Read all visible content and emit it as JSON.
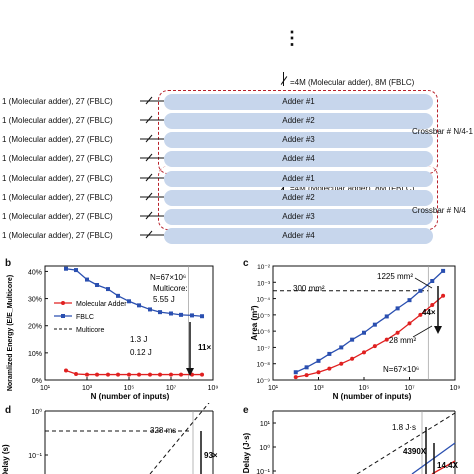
{
  "top_ellipsis": "⋮",
  "schematic": {
    "groups": [
      {
        "bus_label": "=4M (Molecular adder), 8M (FBLC)",
        "inputs": [
          "1 (Molecular adder), 27 (FBLC)",
          "1 (Molecular adder), 27 (FBLC)",
          "1 (Molecular adder), 27 (FBLC)",
          "1 (Molecular adder), 27 (FBLC)"
        ],
        "adders": [
          "Adder #1",
          "Adder #2",
          "Adder #3",
          "Adder #4"
        ],
        "crossbar_label": "Crossbar # N/4-1"
      },
      {
        "bus_label": "=4M (Molecular adder), 8M (FBLC)",
        "inputs": [
          "1 (Molecular adder), 27 (FBLC)",
          "1 (Molecular adder), 27 (FBLC)",
          "1 (Molecular adder), 27 (FBLC)",
          "1 (Molecular adder), 27 (FBLC)"
        ],
        "adders": [
          "Adder #1",
          "Adder #2",
          "Adder #3",
          "Adder #4"
        ],
        "crossbar_label": "Crossbar # N/4"
      }
    ]
  },
  "panels": {
    "b": {
      "letter": "b"
    },
    "c": {
      "letter": "c"
    },
    "d": {
      "letter": "d"
    },
    "e": {
      "letter": "e"
    }
  },
  "colors": {
    "molecular": "#e02020",
    "fblc": "#2a4fb0",
    "multicore": "#111111",
    "bar": "#c7d6ec",
    "crossbar": "#b8202a"
  },
  "chart_data": [
    {
      "panel": "b",
      "type": "line",
      "ylabel": "Noramlized Energy (E/E_Multicore)",
      "xlabel": "N (number of inputs)",
      "x_scale": "log",
      "xlim": [
        10,
        1000000000
      ],
      "ylim": [
        0,
        0.42
      ],
      "x_ticks": [
        "10¹",
        "10³",
        "10⁵",
        "10⁷",
        "10⁹"
      ],
      "y_ticks": [
        "0%",
        "10%",
        "20%",
        "30%",
        "40%"
      ],
      "series": [
        {
          "name": "Molecular Adder",
          "x": [
            100,
            300,
            1000,
            3000,
            10000,
            30000,
            100000,
            300000,
            1000000,
            3000000,
            10000000,
            30000000,
            100000000,
            300000000
          ],
          "y": [
            0.035,
            0.022,
            0.02,
            0.02,
            0.02,
            0.02,
            0.02,
            0.02,
            0.02,
            0.02,
            0.02,
            0.02,
            0.02,
            0.02
          ]
        },
        {
          "name": "FBLC",
          "x": [
            100,
            300,
            1000,
            3000,
            10000,
            30000,
            100000,
            300000,
            1000000,
            3000000,
            10000000,
            30000000,
            100000000,
            300000000
          ],
          "y": [
            0.41,
            0.405,
            0.37,
            0.35,
            0.335,
            0.31,
            0.29,
            0.275,
            0.26,
            0.25,
            0.245,
            0.24,
            0.238,
            0.235
          ]
        },
        {
          "name": "Multicore",
          "x": [],
          "y": []
        }
      ],
      "annotations": [
        "N=67×10⁶",
        "Multicore:",
        "5.55 J",
        "1.3  J",
        "0.12 J",
        "11×"
      ]
    },
    {
      "panel": "c",
      "type": "line",
      "ylabel": "Area (m²)",
      "xlabel": "N (number of inputs)",
      "x_scale": "log",
      "y_scale": "log",
      "xlim": [
        10,
        1000000000
      ],
      "ylim": [
        1e-09,
        0.01
      ],
      "x_ticks": [
        "10¹",
        "10³",
        "10⁵",
        "10⁷",
        "10⁹"
      ],
      "y_ticks": [
        "10⁻⁹",
        "10⁻⁸",
        "10⁻⁷",
        "10⁻⁶",
        "10⁻⁵",
        "10⁻⁴",
        "10⁻³",
        "10⁻²"
      ],
      "series": [
        {
          "name": "FBLC",
          "x": [
            100,
            300,
            1000,
            3000,
            10000,
            30000,
            100000,
            300000,
            1000000,
            3000000,
            10000000,
            30000000,
            100000000,
            300000000
          ],
          "y": [
            3e-09,
            6e-09,
            1.5e-08,
            4e-08,
            1e-07,
            3e-07,
            8e-07,
            2.5e-06,
            8e-06,
            2.5e-05,
            8e-05,
            0.0003,
            0.0012,
            0.005
          ]
        },
        {
          "name": "Molecular Adder",
          "x": [
            100,
            300,
            1000,
            3000,
            10000,
            30000,
            100000,
            300000,
            1000000,
            3000000,
            10000000,
            30000000,
            100000000,
            300000000
          ],
          "y": [
            1.5e-09,
            2e-09,
            3e-09,
            5e-09,
            1e-08,
            2e-08,
            5e-08,
            1.2e-07,
            3e-07,
            8e-07,
            3e-06,
            1e-05,
            4e-05,
            0.00015
          ]
        }
      ],
      "annotations": [
        "1225 mm²",
        "300 mm²",
        "44×",
        "28 mm²",
        "N=67×10⁶"
      ]
    },
    {
      "panel": "d",
      "type": "line",
      "ylabel": "Delay (s)",
      "y_ticks": [
        "10⁰",
        "10⁻¹"
      ],
      "annotations": [
        "328 ms",
        "93×"
      ]
    },
    {
      "panel": "e",
      "type": "line",
      "ylabel": "Delay (J·s)",
      "y_ticks": [
        "10¹",
        "10⁰",
        "10⁻¹"
      ],
      "annotations": [
        "1.8 J·s",
        "4390X",
        "14.4X"
      ]
    }
  ]
}
